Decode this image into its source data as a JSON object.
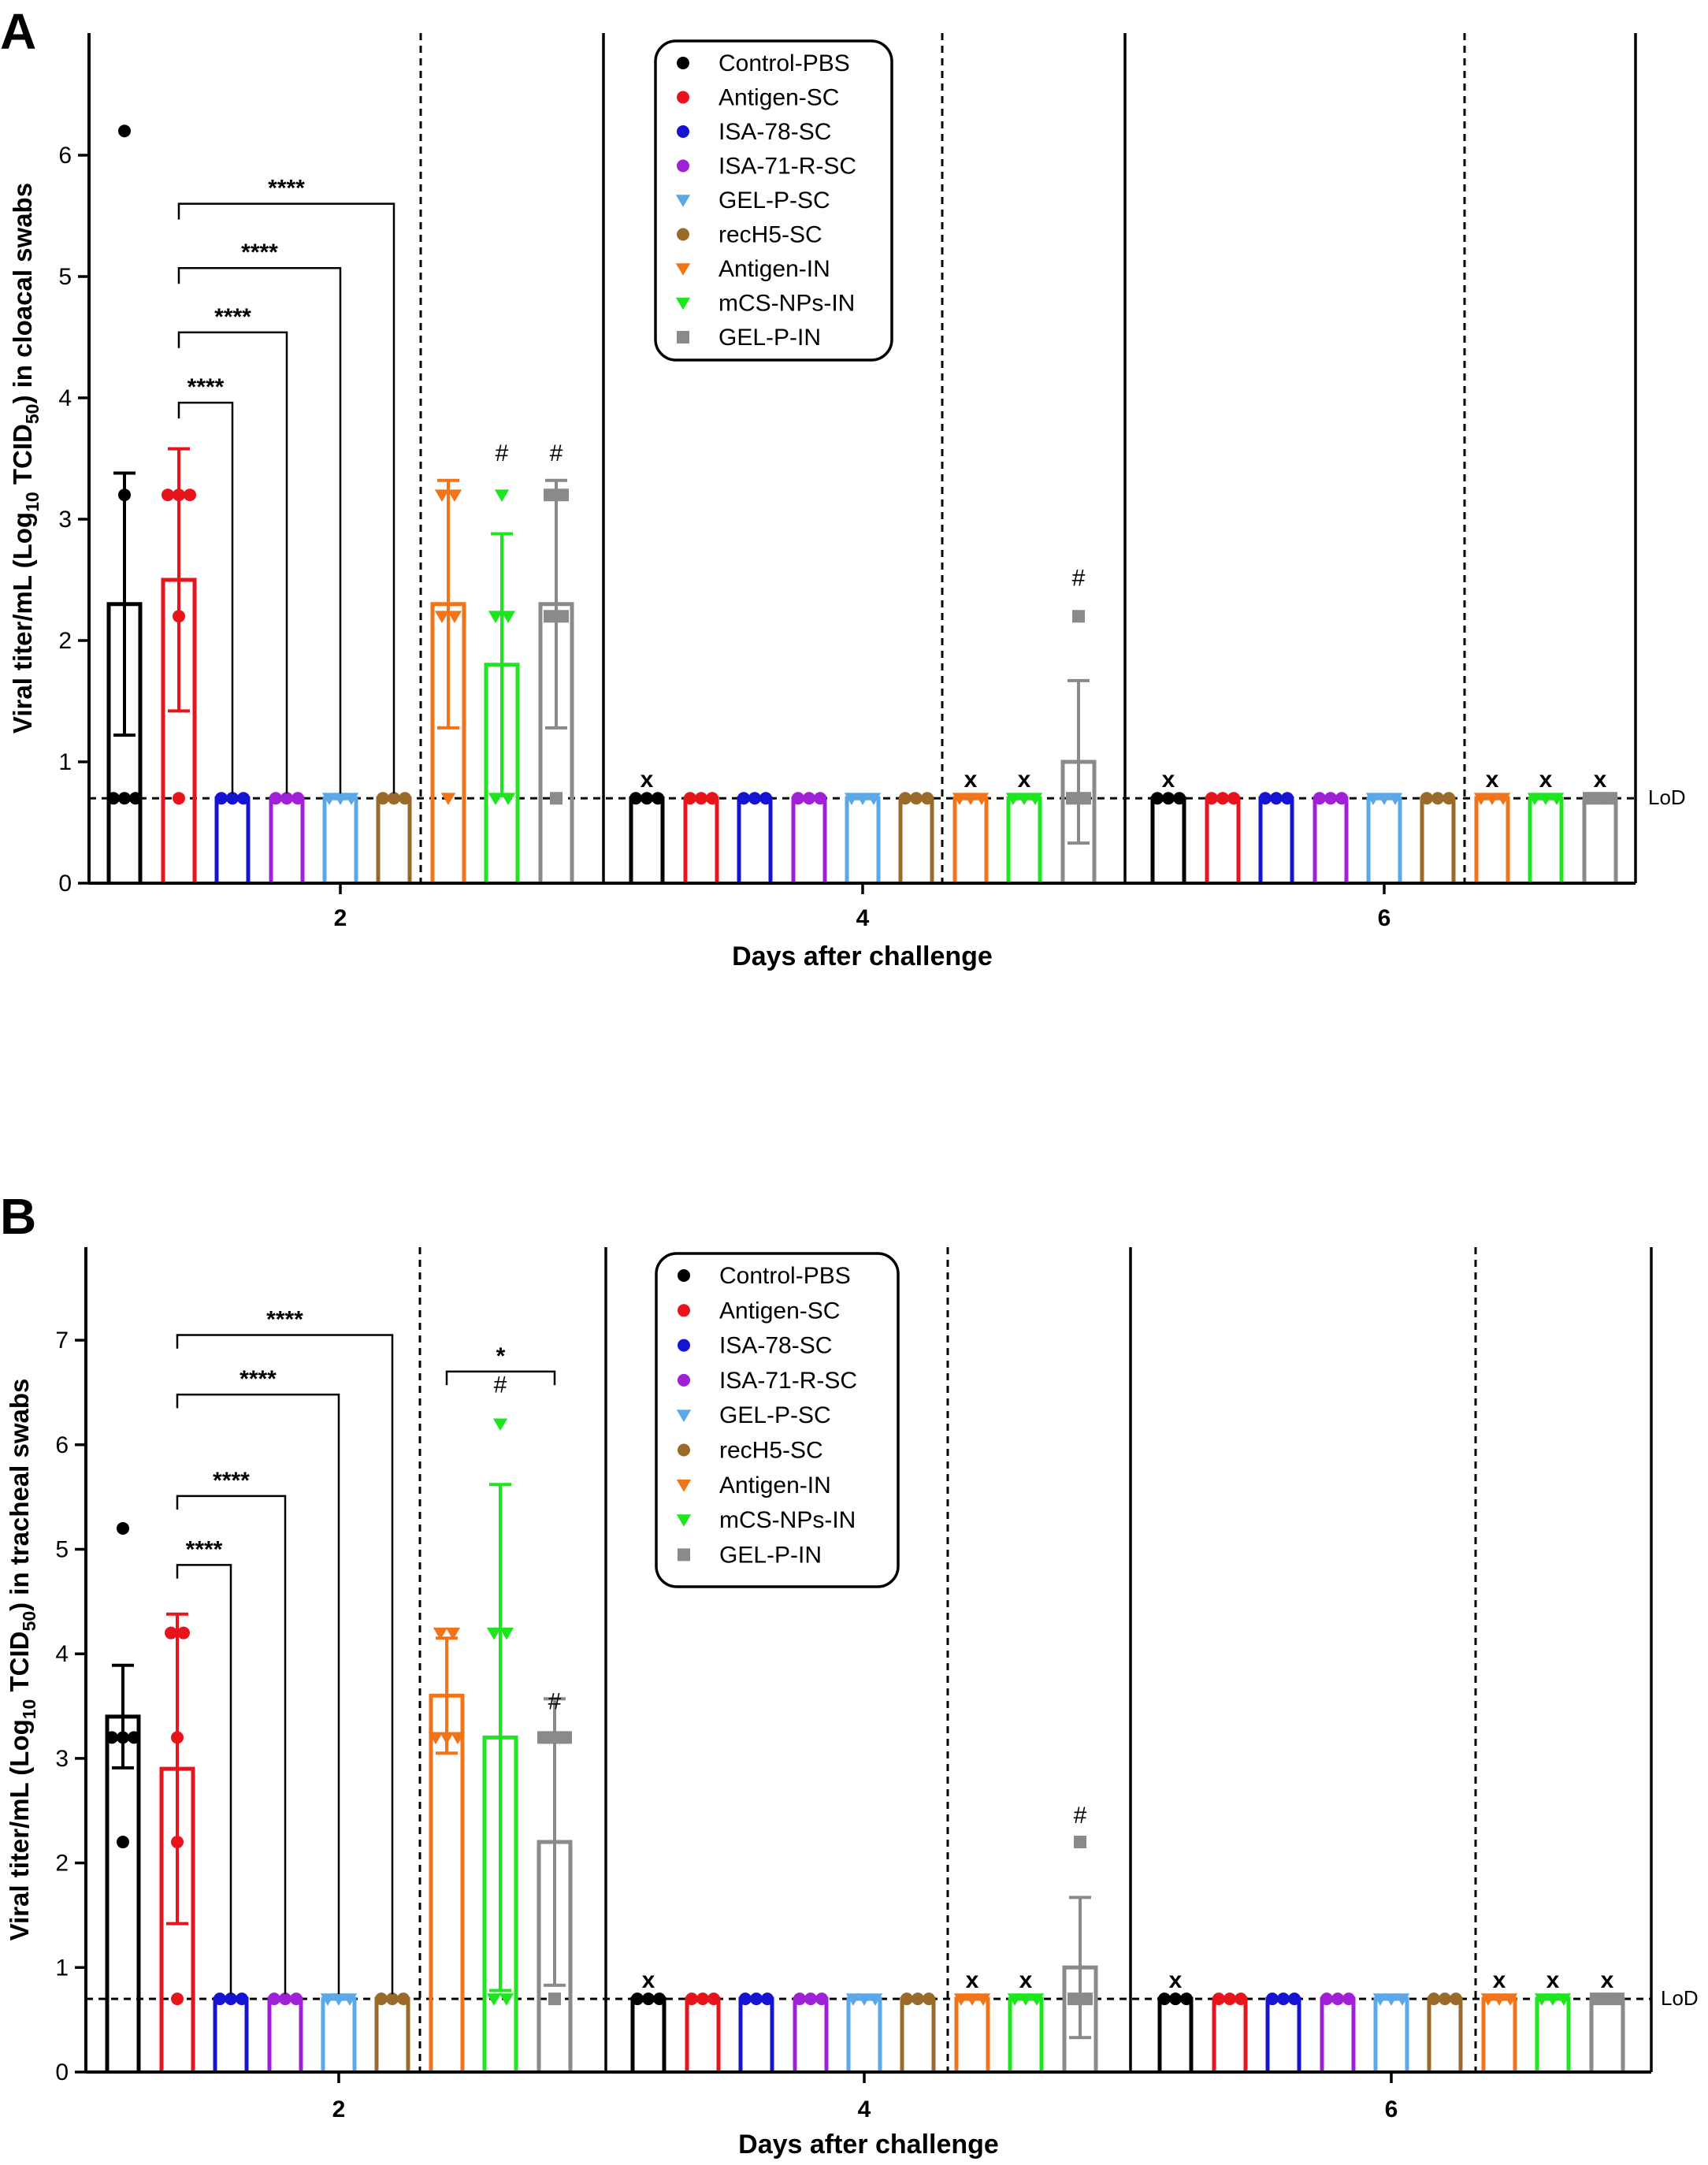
{
  "figure": {
    "xlabel": "Days after challenge",
    "lod_label": "LoD",
    "x_marker": "x",
    "hash_marker": "#"
  },
  "legend": [
    {
      "name": "Control-PBS",
      "color": "#000000",
      "marker": "circle"
    },
    {
      "name": "Antigen-SC",
      "color": "#e8141c",
      "marker": "circle"
    },
    {
      "name": "ISA-78-SC",
      "color": "#1414d2",
      "marker": "circle"
    },
    {
      "name": "ISA-71-R-SC",
      "color": "#a020d8",
      "marker": "circle"
    },
    {
      "name": "GEL-P-SC",
      "color": "#5aa8e8",
      "marker": "triangle-down"
    },
    {
      "name": "recH5-SC",
      "color": "#9a6a2a",
      "marker": "circle"
    },
    {
      "name": "Antigen-IN",
      "color": "#f27418",
      "marker": "triangle-down"
    },
    {
      "name": "mCS-NPs-IN",
      "color": "#1ee61e",
      "marker": "triangle-down"
    },
    {
      "name": "GEL-P-IN",
      "color": "#8a8a8a",
      "marker": "square"
    }
  ],
  "chart_data": [
    {
      "type": "bar",
      "panel": "A",
      "ylabel_parts": [
        "Viral titer/mL (Log",
        "10",
        " TCID",
        "50",
        ") in cloacal swabs"
      ],
      "ylim": [
        0,
        7
      ],
      "yticks": [
        0,
        1,
        2,
        3,
        4,
        5,
        6
      ],
      "lod": 0.7,
      "days": [
        "2",
        "4",
        "6"
      ],
      "groups": [
        "Control-PBS",
        "Antigen-SC",
        "ISA-78-SC",
        "ISA-71-R-SC",
        "GEL-P-SC",
        "recH5-SC",
        "Antigen-IN",
        "mCS-NPs-IN",
        "GEL-P-IN"
      ],
      "means": [
        [
          2.3,
          2.5,
          0.7,
          0.7,
          0.7,
          0.7,
          2.3,
          1.8,
          2.3
        ],
        [
          0.7,
          0.7,
          0.7,
          0.7,
          0.7,
          0.7,
          0.7,
          0.7,
          1.0
        ],
        [
          0.7,
          0.7,
          0.7,
          0.7,
          0.7,
          0.7,
          0.7,
          0.7,
          0.7
        ]
      ],
      "sd": [
        [
          1.08,
          1.08,
          0,
          0,
          0,
          0,
          1.02,
          1.08,
          1.02
        ],
        [
          0,
          0,
          0,
          0,
          0,
          0,
          0,
          0,
          0.67
        ],
        [
          0,
          0,
          0,
          0,
          0,
          0,
          0,
          0,
          0
        ]
      ],
      "points": [
        [
          [
            6.2,
            3.2,
            0.7,
            0.7,
            0.7
          ],
          [
            3.2,
            3.2,
            3.2,
            2.2,
            0.7
          ],
          [
            0.7,
            0.7,
            0.7
          ],
          [
            0.7,
            0.7,
            0.7
          ],
          [
            0.7,
            0.7,
            0.7
          ],
          [
            0.7,
            0.7,
            0.7
          ],
          [
            3.2,
            3.2,
            2.2,
            2.2,
            0.7
          ],
          [
            3.2,
            2.2,
            2.2,
            0.7,
            0.7
          ],
          [
            3.2,
            3.2,
            2.2,
            2.2,
            0.7
          ]
        ],
        [
          [
            0.7,
            0.7,
            0.7
          ],
          [
            0.7,
            0.7,
            0.7
          ],
          [
            0.7,
            0.7,
            0.7
          ],
          [
            0.7,
            0.7,
            0.7
          ],
          [
            0.7,
            0.7,
            0.7
          ],
          [
            0.7,
            0.7,
            0.7
          ],
          [
            0.7,
            0.7,
            0.7
          ],
          [
            0.7,
            0.7,
            0.7
          ],
          [
            2.2,
            0.7,
            0.7
          ]
        ],
        [
          [
            0.7,
            0.7,
            0.7
          ],
          [
            0.7,
            0.7,
            0.7
          ],
          [
            0.7,
            0.7,
            0.7
          ],
          [
            0.7,
            0.7,
            0.7
          ],
          [
            0.7,
            0.7,
            0.7
          ],
          [
            0.7,
            0.7,
            0.7
          ],
          [
            0.7,
            0.7,
            0.7
          ],
          [
            0.7,
            0.7,
            0.7
          ],
          [
            0.7,
            0.7,
            0.7
          ]
        ]
      ],
      "x_markers": [
        [
          4,
          0
        ],
        [
          4,
          6
        ],
        [
          4,
          7
        ],
        [
          6,
          0
        ],
        [
          6,
          6
        ],
        [
          6,
          7
        ],
        [
          6,
          8
        ]
      ],
      "hash_markers": [
        [
          2,
          7,
          3.48
        ],
        [
          2,
          8,
          3.48
        ],
        [
          4,
          8,
          2.45
        ]
      ],
      "brackets": [
        {
          "day": 2,
          "from": 1,
          "to": 2,
          "y": 3.96,
          "label": "****"
        },
        {
          "day": 2,
          "from": 1,
          "to": 3,
          "y": 4.54,
          "label": "****"
        },
        {
          "day": 2,
          "from": 1,
          "to": 4,
          "y": 5.07,
          "label": "****"
        },
        {
          "day": 2,
          "from": 1,
          "to": 5,
          "y": 5.6,
          "label": "****"
        }
      ]
    },
    {
      "type": "bar",
      "panel": "B",
      "ylabel_parts": [
        "Viral titer/mL (Log",
        "10",
        " TCID",
        "50",
        ") in tracheal swabs"
      ],
      "ylim": [
        0,
        7.8
      ],
      "yticks": [
        0,
        1,
        2,
        3,
        4,
        5,
        6,
        7
      ],
      "lod": 0.7,
      "days": [
        "2",
        "4",
        "6"
      ],
      "groups": [
        "Control-PBS",
        "Antigen-SC",
        "ISA-78-SC",
        "ISA-71-R-SC",
        "GEL-P-SC",
        "recH5-SC",
        "Antigen-IN",
        "mCS-NPs-IN",
        "GEL-P-IN"
      ],
      "means": [
        [
          3.4,
          2.9,
          0.7,
          0.7,
          0.7,
          0.7,
          3.6,
          3.2,
          2.2
        ],
        [
          0.7,
          0.7,
          0.7,
          0.7,
          0.7,
          0.7,
          0.7,
          0.7,
          1.0
        ],
        [
          0.7,
          0.7,
          0.7,
          0.7,
          0.7,
          0.7,
          0.7,
          0.7,
          0.7
        ]
      ],
      "sd": [
        [
          0.49,
          1.48,
          0,
          0,
          0,
          0,
          0.55,
          2.42,
          1.37
        ],
        [
          0,
          0,
          0,
          0,
          0,
          0,
          0,
          0,
          0.67
        ],
        [
          0,
          0,
          0,
          0,
          0,
          0,
          0,
          0,
          0
        ]
      ],
      "points": [
        [
          [
            5.2,
            3.2,
            3.2,
            3.2,
            2.2
          ],
          [
            4.2,
            4.2,
            3.2,
            2.2,
            0.7
          ],
          [
            0.7,
            0.7,
            0.7
          ],
          [
            0.7,
            0.7,
            0.7
          ],
          [
            0.7,
            0.7,
            0.7
          ],
          [
            0.7,
            0.7,
            0.7
          ],
          [
            4.2,
            4.2,
            3.2,
            3.2,
            3.2
          ],
          [
            6.2,
            4.2,
            4.2,
            0.7,
            0.7
          ],
          [
            3.2,
            3.2,
            3.2,
            3.2,
            0.7
          ]
        ],
        [
          [
            0.7,
            0.7,
            0.7
          ],
          [
            0.7,
            0.7,
            0.7
          ],
          [
            0.7,
            0.7,
            0.7
          ],
          [
            0.7,
            0.7,
            0.7
          ],
          [
            0.7,
            0.7,
            0.7
          ],
          [
            0.7,
            0.7,
            0.7
          ],
          [
            0.7,
            0.7,
            0.7
          ],
          [
            0.7,
            0.7,
            0.7
          ],
          [
            2.2,
            0.7,
            0.7
          ]
        ],
        [
          [
            0.7,
            0.7,
            0.7
          ],
          [
            0.7,
            0.7,
            0.7
          ],
          [
            0.7,
            0.7,
            0.7
          ],
          [
            0.7,
            0.7,
            0.7
          ],
          [
            0.7,
            0.7,
            0.7
          ],
          [
            0.7,
            0.7,
            0.7
          ],
          [
            0.7,
            0.7,
            0.7
          ],
          [
            0.7,
            0.7,
            0.7
          ],
          [
            0.7,
            0.7,
            0.7
          ]
        ]
      ],
      "x_markers": [
        [
          4,
          0
        ],
        [
          4,
          6
        ],
        [
          4,
          7
        ],
        [
          6,
          0
        ],
        [
          6,
          6
        ],
        [
          6,
          7
        ],
        [
          6,
          8
        ]
      ],
      "hash_markers": [
        [
          2,
          7,
          6.5
        ],
        [
          2,
          8,
          3.47
        ],
        [
          4,
          8,
          2.38
        ]
      ],
      "brackets": [
        {
          "day": 2,
          "from": 1,
          "to": 2,
          "y": 4.85,
          "label": "****"
        },
        {
          "day": 2,
          "from": 1,
          "to": 3,
          "y": 5.51,
          "label": "****"
        },
        {
          "day": 2,
          "from": 1,
          "to": 4,
          "y": 6.48,
          "label": "****"
        },
        {
          "day": 2,
          "from": 1,
          "to": 5,
          "y": 7.05,
          "label": "****"
        },
        {
          "day": 2,
          "from": 6,
          "to": 8,
          "y": 6.7,
          "label": "*"
        }
      ]
    }
  ]
}
